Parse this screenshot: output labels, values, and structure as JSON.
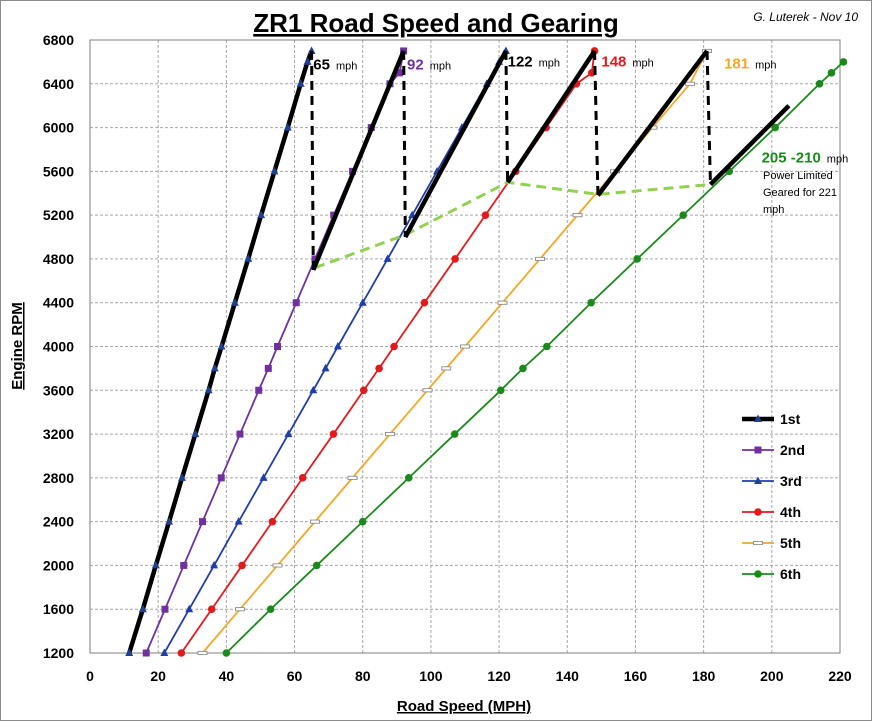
{
  "chart_data": {
    "type": "line",
    "title": "ZR1 Road Speed and Gearing",
    "author": "G. Luterek - Nov 10",
    "xlabel": "Road Speed (MPH)",
    "ylabel": "Engine RPM",
    "xlim": [
      0,
      220
    ],
    "ylim": [
      1200,
      6800
    ],
    "x_ticks": [
      "0",
      "20",
      "40",
      "60",
      "80",
      "100",
      "120",
      "140",
      "160",
      "180",
      "200",
      "220"
    ],
    "y_ticks": [
      "1200",
      "1600",
      "2000",
      "2400",
      "2800",
      "3200",
      "3600",
      "4000",
      "4400",
      "4800",
      "5200",
      "5600",
      "6000",
      "6400",
      "6800"
    ],
    "grid": true,
    "legend_position": "right",
    "series": [
      {
        "name": "1st",
        "color": "#000000",
        "marker": "triangle",
        "x": [
          11.5,
          15.5,
          19.3,
          23.2,
          27.0,
          30.9,
          34.8,
          36.6,
          38.6,
          42.5,
          46.4,
          50.2,
          54.1,
          58.0,
          61.8,
          63.8,
          65.0
        ],
        "y": [
          1200,
          1600,
          2000,
          2400,
          2800,
          3200,
          3600,
          3800,
          4000,
          4400,
          4800,
          5200,
          5600,
          6000,
          6400,
          6600,
          6700
        ]
      },
      {
        "name": "2nd",
        "color": "#7030a0",
        "marker": "square",
        "x": [
          16.5,
          22.0,
          27.5,
          33.0,
          38.5,
          44.0,
          49.5,
          52.3,
          55.0,
          60.5,
          66.0,
          71.5,
          77.0,
          82.5,
          88.0,
          90.8,
          92.0
        ],
        "y": [
          1200,
          1600,
          2000,
          2400,
          2800,
          3200,
          3600,
          3800,
          4000,
          4400,
          4800,
          5200,
          5600,
          6000,
          6400,
          6500,
          6700
        ]
      },
      {
        "name": "3rd",
        "color": "#1f3fa8",
        "marker": "triangle",
        "x": [
          21.8,
          29.1,
          36.4,
          43.6,
          50.9,
          58.2,
          65.5,
          69.1,
          72.7,
          80.0,
          87.3,
          94.5,
          101.8,
          109.1,
          116.4,
          120.0,
          122.0
        ],
        "y": [
          1200,
          1600,
          2000,
          2400,
          2800,
          3200,
          3600,
          3800,
          4000,
          4400,
          4800,
          5200,
          5600,
          6000,
          6400,
          6600,
          6700
        ]
      },
      {
        "name": "4th",
        "color": "#e31a1c",
        "marker": "circle",
        "x": [
          26.8,
          35.7,
          44.6,
          53.5,
          62.4,
          71.4,
          80.3,
          84.8,
          89.2,
          98.1,
          107.1,
          116.0,
          124.9,
          133.8,
          142.7,
          147.2,
          148.0
        ],
        "y": [
          1200,
          1600,
          2000,
          2400,
          2800,
          3200,
          3600,
          3800,
          4000,
          4400,
          4800,
          5200,
          5600,
          6000,
          6400,
          6500,
          6700
        ]
      },
      {
        "name": "5th",
        "color": "#f5a623",
        "marker": "dash",
        "x": [
          33.0,
          44.0,
          55.0,
          66.0,
          77.0,
          88.0,
          99.0,
          104.5,
          110.0,
          121.0,
          132.0,
          143.0,
          154.0,
          165.0,
          176.0,
          181.0
        ],
        "y": [
          1200,
          1600,
          2000,
          2400,
          2800,
          3200,
          3600,
          3800,
          4000,
          4400,
          4800,
          5200,
          5600,
          6000,
          6400,
          6700
        ]
      },
      {
        "name": "6th",
        "color": "#1a8a1a",
        "marker": "circle",
        "x": [
          40.0,
          53.0,
          66.5,
          80.0,
          93.5,
          107.0,
          120.5,
          127.0,
          134.0,
          147.0,
          160.5,
          174.0,
          187.5,
          201.0,
          214.0,
          217.5,
          221.0
        ],
        "y": [
          1200,
          1600,
          2000,
          2400,
          2800,
          3200,
          3600,
          3800,
          4000,
          4400,
          4800,
          5200,
          5600,
          6000,
          6400,
          6500,
          6600
        ]
      }
    ],
    "shift_lines": [
      {
        "x": [
          65.0,
          65.5
        ],
        "y": [
          6700,
          4700
        ]
      },
      {
        "x": [
          65.5,
          92.0
        ],
        "y": [
          4700,
          6700
        ]
      },
      {
        "x": [
          92.0,
          92.5
        ],
        "y": [
          6700,
          5000
        ]
      },
      {
        "x": [
          92.5,
          122.0
        ],
        "y": [
          5000,
          6700
        ]
      },
      {
        "x": [
          122.0,
          122.5
        ],
        "y": [
          6700,
          5500
        ]
      },
      {
        "x": [
          122.5,
          148.0
        ],
        "y": [
          5500,
          6700
        ]
      },
      {
        "x": [
          148.0,
          149.0
        ],
        "y": [
          6700,
          5380
        ]
      },
      {
        "x": [
          149.0,
          181.0
        ],
        "y": [
          5380,
          6700
        ]
      },
      {
        "x": [
          181.0,
          182.0
        ],
        "y": [
          6700,
          5480
        ]
      },
      {
        "x": [
          182.0,
          205.0
        ],
        "y": [
          5480,
          6200
        ]
      }
    ],
    "shift_rpm_curve": {
      "color": "#92d050",
      "x": [
        66.0,
        92.5,
        122.5,
        149.0,
        182.0
      ],
      "y": [
        4720,
        5020,
        5500,
        5390,
        5480
      ]
    },
    "annotations": [
      {
        "value": "65",
        "unit": "mph",
        "color": "#000000",
        "x": 65.5,
        "y": 6530
      },
      {
        "value": "92",
        "unit": "mph",
        "color": "#7030a0",
        "x": 93.0,
        "y": 6530
      },
      {
        "value": "122",
        "unit": "mph",
        "color": "#000000",
        "x": 122.5,
        "y": 6560
      },
      {
        "value": "148",
        "unit": "mph",
        "color": "#e31a1c",
        "x": 150.0,
        "y": 6560
      },
      {
        "value": "181",
        "unit": "mph",
        "color": "#f5a623",
        "x": 186.0,
        "y": 6540
      },
      {
        "value": "205 -210",
        "unit": "mph",
        "color": "#1a8a1a",
        "x": 197.0,
        "y": 5680
      }
    ],
    "note_lines": [
      "Power Limited",
      "Geared for 221",
      "mph"
    ]
  }
}
